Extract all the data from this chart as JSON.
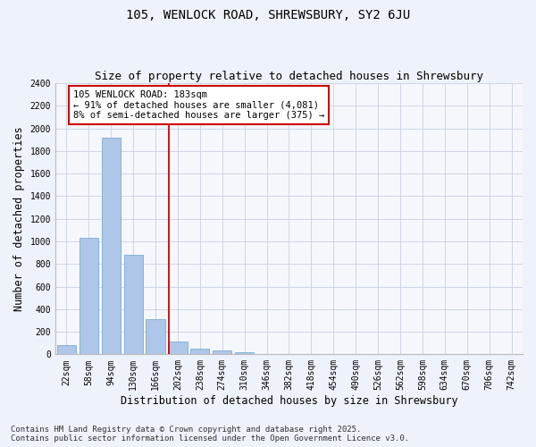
{
  "title1": "105, WENLOCK ROAD, SHREWSBURY, SY2 6JU",
  "title2": "Size of property relative to detached houses in Shrewsbury",
  "xlabel": "Distribution of detached houses by size in Shrewsbury",
  "ylabel": "Number of detached properties",
  "categories": [
    "22sqm",
    "58sqm",
    "94sqm",
    "130sqm",
    "166sqm",
    "202sqm",
    "238sqm",
    "274sqm",
    "310sqm",
    "346sqm",
    "382sqm",
    "418sqm",
    "454sqm",
    "490sqm",
    "526sqm",
    "562sqm",
    "598sqm",
    "634sqm",
    "670sqm",
    "706sqm",
    "742sqm"
  ],
  "values": [
    85,
    1030,
    1920,
    880,
    315,
    115,
    48,
    35,
    20,
    5,
    0,
    0,
    0,
    0,
    0,
    0,
    0,
    0,
    0,
    0,
    0
  ],
  "bar_color": "#aec6e8",
  "bar_edge_color": "#7aadd4",
  "vline_color": "#cc0000",
  "vline_pos": 4.62,
  "annotation_text": "105 WENLOCK ROAD: 183sqm\n← 91% of detached houses are smaller (4,081)\n8% of semi-detached houses are larger (375) →",
  "annotation_box_color": "#ffffff",
  "annotation_box_edge": "#cc0000",
  "ylim": [
    0,
    2400
  ],
  "yticks": [
    0,
    200,
    400,
    600,
    800,
    1000,
    1200,
    1400,
    1600,
    1800,
    2000,
    2200,
    2400
  ],
  "footer1": "Contains HM Land Registry data © Crown copyright and database right 2025.",
  "footer2": "Contains public sector information licensed under the Open Government Licence v3.0.",
  "bg_color": "#eef2fb",
  "plot_bg_color": "#f5f7fd",
  "grid_color": "#c8d0e0",
  "title_fontsize": 10,
  "subtitle_fontsize": 9,
  "axis_label_fontsize": 8.5,
  "tick_fontsize": 7,
  "annotation_fontsize": 7.5,
  "footer_fontsize": 6.5
}
